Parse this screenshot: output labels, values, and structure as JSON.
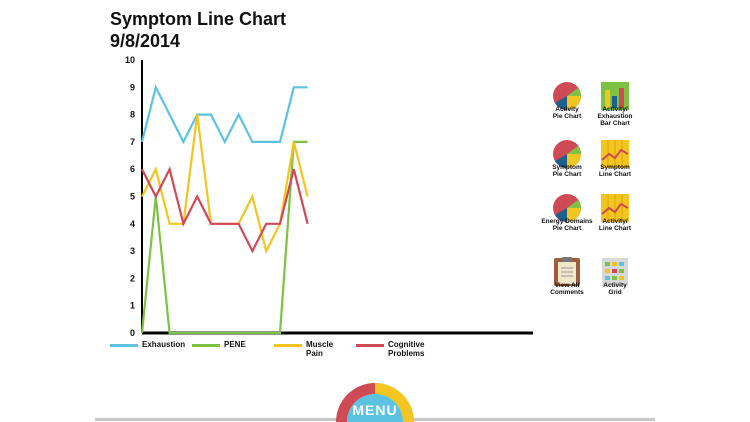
{
  "header": {
    "title": "Symptom Line Chart",
    "date": "9/8/2014"
  },
  "chart_data": {
    "type": "line",
    "title": "Symptom Line Chart",
    "subtitle": "9/8/2014",
    "xlabel": "",
    "ylabel": "",
    "ylim": [
      0,
      10
    ],
    "yticks": [
      0,
      1,
      2,
      3,
      4,
      5,
      6,
      7,
      8,
      9,
      10
    ],
    "x": [
      0,
      1,
      2,
      3,
      4,
      5,
      6,
      7,
      8,
      9,
      10,
      11,
      12
    ],
    "grid": false,
    "legend_position": "bottom",
    "series": [
      {
        "name": "Exhaustion",
        "color": "#5bc3e0",
        "values": [
          7,
          9,
          8,
          7,
          8,
          8,
          7,
          8,
          7,
          7,
          7,
          9,
          9
        ]
      },
      {
        "name": "PENE",
        "color": "#7dc242",
        "values": [
          0,
          5,
          0,
          0,
          0,
          0,
          0,
          0,
          0,
          0,
          0,
          7,
          7
        ]
      },
      {
        "name": "Muscle Pain",
        "color": "#f2c521",
        "values": [
          5,
          6,
          4,
          4,
          8,
          4,
          4,
          4,
          5,
          3,
          4,
          7,
          5
        ]
      },
      {
        "name": "Cognitive\nProblems",
        "color": "#cf4a55",
        "values": [
          6,
          5,
          6,
          4,
          5,
          4,
          4,
          4,
          3,
          4,
          4,
          6,
          4
        ]
      }
    ]
  },
  "side_buttons": [
    {
      "label": "Activity\nPie Chart",
      "icon": "pie-chart-icon"
    },
    {
      "label": "Activity/\nExhaustion\nBar Chart",
      "icon": "bar-chart-icon"
    },
    {
      "label": "Symptom\nPie Chart",
      "icon": "pie-chart-icon"
    },
    {
      "label": "Symptom\nLine Chart",
      "icon": "line-chart-icon"
    },
    {
      "label": "Energy Domains\nPie Chart",
      "icon": "pie-chart-icon"
    },
    {
      "label": "Activity/\nLine Chart",
      "icon": "line-chart-icon"
    },
    {
      "label": "View All\nComments",
      "icon": "clipboard-icon"
    },
    {
      "label": "Activity\nGrid",
      "icon": "grid-icon"
    }
  ],
  "menu": {
    "label": "MENU",
    "colors": [
      "#cf4a55",
      "#f2c521",
      "#5bc3e0"
    ]
  }
}
